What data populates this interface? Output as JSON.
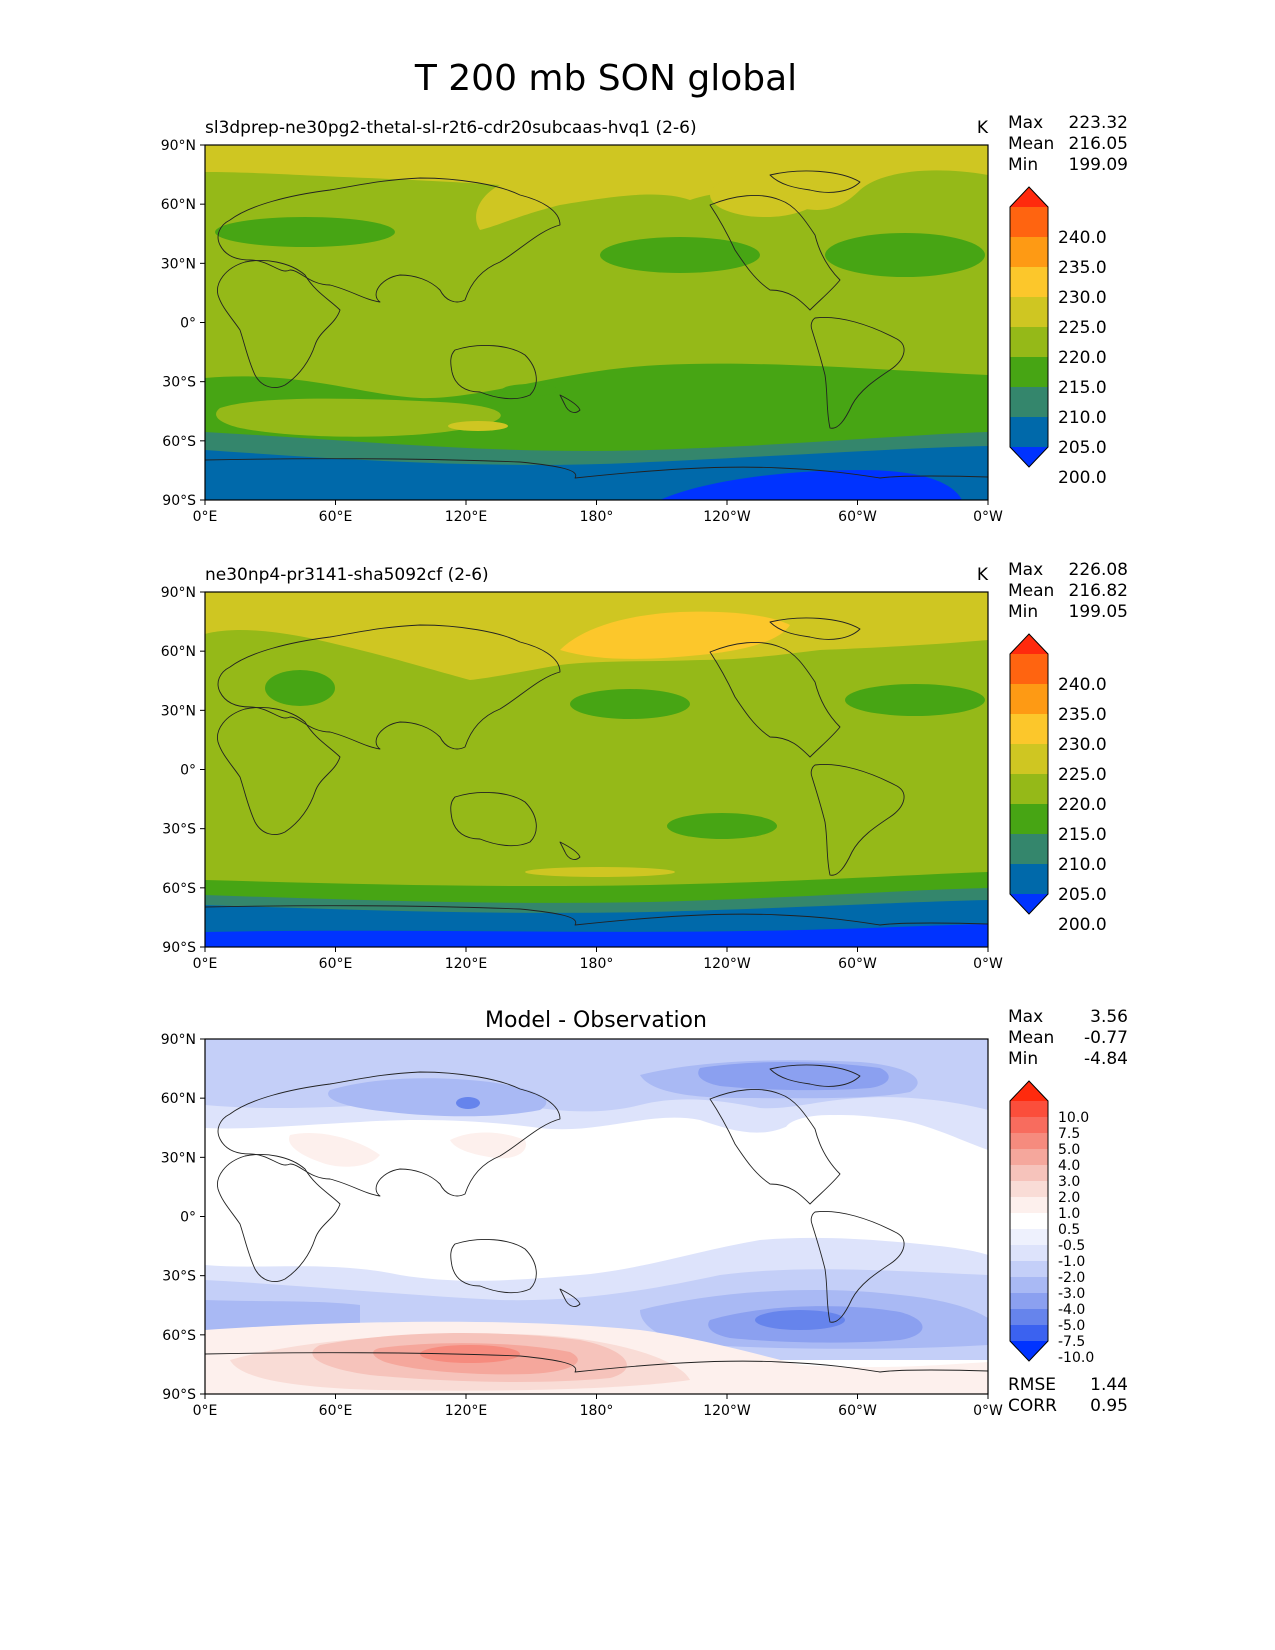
{
  "figure": {
    "title": "T 200 mb SON global",
    "lon_ticks": [
      "0°E",
      "60°E",
      "120°E",
      "180°",
      "120°W",
      "60°W",
      "0°W"
    ],
    "lat_ticks": [
      "90°N",
      "60°N",
      "30°N",
      "0°",
      "30°S",
      "60°S",
      "90°S"
    ]
  },
  "panels": [
    {
      "id": "test",
      "title": "sl3dprep-ne30pg2-thetal-sl-r2t6-cdr20subcaas-hvq1 (2-6)",
      "units": "K",
      "stats": [
        {
          "label": "Max",
          "value": "223.32"
        },
        {
          "label": "Mean",
          "value": "216.05"
        },
        {
          "label": "Min",
          "value": "199.09"
        }
      ],
      "colorbar": {
        "labels": [
          "240.0",
          "235.0",
          "230.0",
          "225.0",
          "220.0",
          "215.0",
          "210.0",
          "205.0",
          "200.0"
        ],
        "colors": [
          "#ff2a0d",
          "#ff6410",
          "#fe9a14",
          "#fcc72b",
          "#cfc622",
          "#95b918",
          "#47a514",
          "#34866c",
          "#0069aa",
          "#0033ff"
        ]
      }
    },
    {
      "id": "ref",
      "title": "ne30np4-pr3141-sha5092cf (2-6)",
      "units": "K",
      "stats": [
        {
          "label": "Max",
          "value": "226.08"
        },
        {
          "label": "Mean",
          "value": "216.82"
        },
        {
          "label": "Min",
          "value": "199.05"
        }
      ],
      "colorbar": {
        "labels": [
          "240.0",
          "235.0",
          "230.0",
          "225.0",
          "220.0",
          "215.0",
          "210.0",
          "205.0",
          "200.0"
        ],
        "colors": [
          "#ff2a0d",
          "#ff6410",
          "#fe9a14",
          "#fcc72b",
          "#cfc622",
          "#95b918",
          "#47a514",
          "#34866c",
          "#0069aa",
          "#0033ff"
        ]
      }
    },
    {
      "id": "diff",
      "title": "Model - Observation",
      "units": "",
      "stats": [
        {
          "label": "Max",
          "value": "3.56"
        },
        {
          "label": "Mean",
          "value": "-0.77"
        },
        {
          "label": "Min",
          "value": "-4.84"
        }
      ],
      "colorbar": {
        "labels": [
          "10.0",
          "7.5",
          "5.0",
          "4.0",
          "3.0",
          "2.0",
          "1.0",
          "0.5",
          "-0.5",
          "-1.0",
          "-2.0",
          "-3.0",
          "-4.0",
          "-5.0",
          "-7.5",
          "-10.0"
        ],
        "colors": [
          "#ff2a0d",
          "#fb4e3b",
          "#f86c5e",
          "#f68b7e",
          "#f5a79c",
          "#f6c3bb",
          "#f9dcd6",
          "#fdf0ed",
          "#ffffff",
          "#eef1fd",
          "#dde3fb",
          "#c4cff8",
          "#a9b9f4",
          "#8ba0f0",
          "#6684ec",
          "#3b62f0",
          "#0033ff"
        ]
      },
      "extra_stats": [
        {
          "label": "RMSE",
          "value": "1.44"
        },
        {
          "label": "CORR",
          "value": "0.95"
        }
      ]
    }
  ]
}
